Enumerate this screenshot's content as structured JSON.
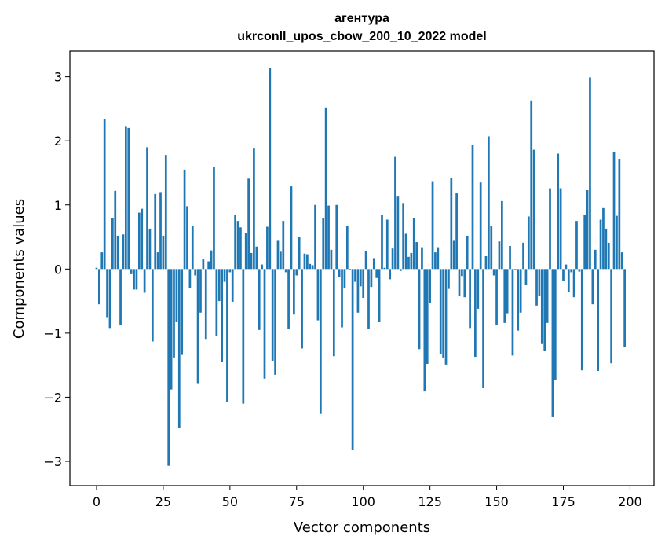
{
  "chart_data": {
    "type": "bar",
    "title_line1": "агентура",
    "title_line2": "ukrconll_upos_cbow_200_10_2022 model",
    "xlabel": "Vector components",
    "ylabel": "Components values",
    "xlim": [
      -10,
      209
    ],
    "ylim": [
      -3.38,
      3.4
    ],
    "xticks": [
      0,
      25,
      50,
      75,
      100,
      125,
      150,
      175,
      200
    ],
    "xtick_labels": [
      "0",
      "25",
      "50",
      "75",
      "100",
      "125",
      "150",
      "175",
      "200"
    ],
    "yticks": [
      -3,
      -2,
      -1,
      0,
      1,
      2,
      3
    ],
    "ytick_labels": [
      "−3",
      "−2",
      "−1",
      "0",
      "1",
      "2",
      "3"
    ],
    "grid": false,
    "bar_color": "#1f77b4",
    "values": [
      0.02,
      -0.55,
      0.26,
      2.34,
      -0.75,
      -0.92,
      0.79,
      1.22,
      0.52,
      -0.87,
      0.54,
      2.23,
      2.2,
      -0.08,
      -0.32,
      -0.32,
      0.88,
      0.94,
      -0.37,
      1.9,
      0.63,
      -1.13,
      1.17,
      0.26,
      1.2,
      0.52,
      1.78,
      -3.07,
      -1.88,
      -1.38,
      -0.83,
      -2.48,
      -1.34,
      1.55,
      0.98,
      -0.3,
      0.67,
      -0.1,
      -1.78,
      -0.68,
      0.15,
      -1.09,
      0.12,
      0.29,
      1.59,
      -1.04,
      -0.5,
      -1.45,
      -0.2,
      -2.07,
      -0.05,
      -0.51,
      0.85,
      0.75,
      0.65,
      -2.1,
      0.56,
      1.41,
      0.25,
      1.89,
      0.35,
      -0.95,
      0.07,
      -1.71,
      0.66,
      3.13,
      -1.43,
      -1.65,
      0.44,
      0.27,
      0.75,
      -0.05,
      -0.93,
      1.29,
      -0.71,
      -0.1,
      0.5,
      -1.24,
      0.24,
      0.23,
      0.08,
      0.06,
      1.0,
      -0.8,
      -2.26,
      0.79,
      2.52,
      0.99,
      0.3,
      -1.36,
      1.0,
      -0.12,
      -0.91,
      -0.3,
      0.67,
      -0.01,
      -2.82,
      -0.2,
      -0.68,
      -0.27,
      -0.45,
      0.28,
      -0.93,
      -0.28,
      0.17,
      -0.14,
      -0.83,
      0.84,
      0.02,
      0.77,
      -0.16,
      0.32,
      1.75,
      1.13,
      -0.03,
      1.03,
      0.55,
      0.19,
      0.25,
      0.8,
      0.42,
      -1.25,
      0.34,
      -1.91,
      -1.48,
      -0.53,
      1.37,
      0.26,
      0.34,
      -1.33,
      -1.38,
      -1.49,
      -0.31,
      1.42,
      0.44,
      1.18,
      -0.42,
      -0.11,
      -0.44,
      0.52,
      -0.92,
      1.94,
      -1.37,
      -0.62,
      1.35,
      -1.86,
      0.2,
      2.07,
      0.67,
      -0.1,
      -0.87,
      0.43,
      1.06,
      -0.84,
      -0.69,
      0.36,
      -1.35,
      -0.02,
      -0.96,
      -0.68,
      0.41,
      -0.25,
      0.82,
      2.63,
      1.86,
      -0.57,
      -0.42,
      -1.17,
      -1.28,
      -0.84,
      1.26,
      -2.3,
      -1.73,
      1.8,
      1.26,
      -0.18,
      0.07,
      -0.36,
      -0.05,
      -0.44,
      0.75,
      -0.04,
      -1.58,
      0.85,
      1.23,
      2.99,
      -0.55,
      0.3,
      -1.59,
      0.77,
      0.95,
      0.63,
      0.41,
      -1.47,
      1.83,
      0.83,
      1.72,
      0.26,
      -1.21
    ]
  }
}
